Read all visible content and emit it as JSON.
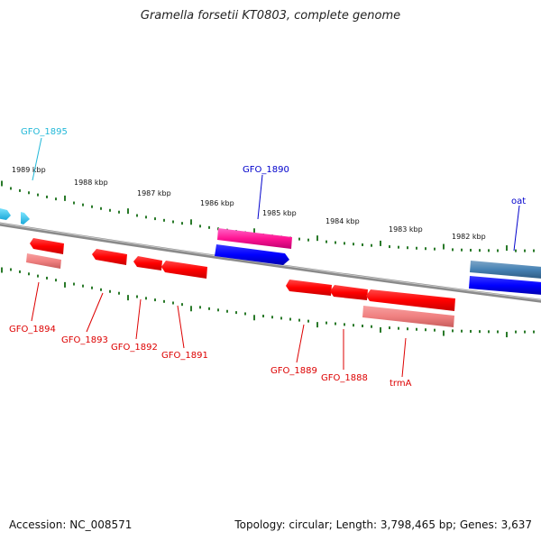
{
  "title": "Gramella forsetii KT0803, complete genome",
  "footer": {
    "accession": "Accession: NC_008571",
    "summary": "Topology: circular; Length: 3,798,465 bp; Genes: 3,637"
  },
  "ruler": {
    "tick_labels": [
      "1989 kbp",
      "1988 kbp",
      "1987 kbp",
      "1986 kbp",
      "1985 kbp",
      "1984 kbp",
      "1983 kbp",
      "1982 kbp"
    ]
  },
  "genes": [
    {
      "label": "GFO_1895",
      "strand": "forward",
      "color": "#22b8d8"
    },
    {
      "label": "GFO_1890",
      "strand": "forward",
      "color": "#0000cc"
    },
    {
      "label": "oat",
      "strand": "forward",
      "color": "#0000cc"
    },
    {
      "label": "GFO_1894",
      "strand": "reverse",
      "color": "#dd0000"
    },
    {
      "label": "GFO_1893",
      "strand": "reverse",
      "color": "#dd0000"
    },
    {
      "label": "GFO_1892",
      "strand": "reverse",
      "color": "#dd0000"
    },
    {
      "label": "GFO_1891",
      "strand": "reverse",
      "color": "#dd0000"
    },
    {
      "label": "GFO_1889",
      "strand": "reverse",
      "color": "#dd0000"
    },
    {
      "label": "GFO_1888",
      "strand": "reverse",
      "color": "#dd0000"
    },
    {
      "label": "trmA",
      "strand": "reverse",
      "color": "#dd0000"
    }
  ]
}
